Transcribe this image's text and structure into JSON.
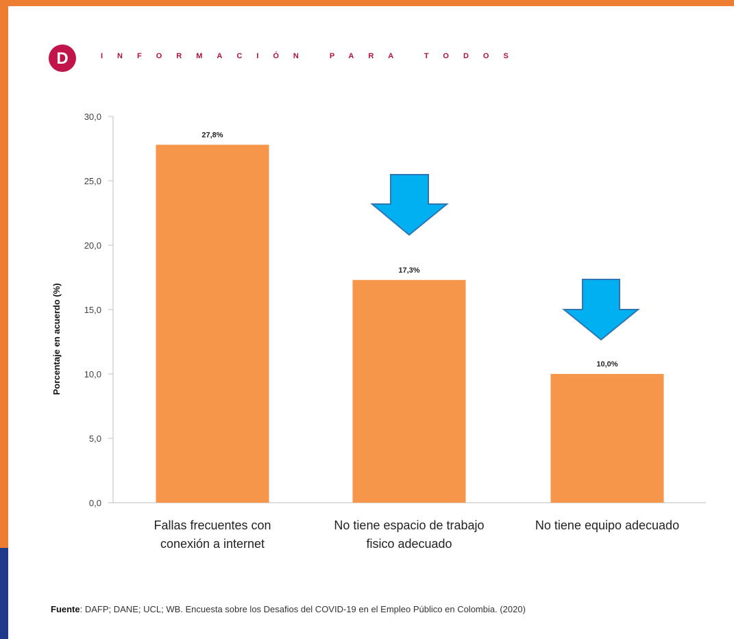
{
  "header": {
    "logo_letter": "D",
    "tagline": "INFORMACIÓN PARA TODOS"
  },
  "colors": {
    "frame": "#ED7D31",
    "bar": "#F5964A",
    "arrow": "#00B0F0",
    "arrow_stroke": "#2E75B6",
    "logo": "#C0144A",
    "edge": "#1F3A8A"
  },
  "chart_data": {
    "type": "bar",
    "categories": [
      [
        "Fallas frecuentes con",
        "conexión a internet"
      ],
      [
        "No tiene espacio de trabajo",
        "fisico adecuado"
      ],
      [
        "No tiene equipo adecuado"
      ]
    ],
    "values": [
      27.8,
      17.3,
      10.0
    ],
    "data_labels": [
      "27,8%",
      "17,3%",
      "10,0%"
    ],
    "yticks": [
      "0,0",
      "5,0",
      "10,0",
      "15,0",
      "20,0",
      "25,0",
      "30,0"
    ],
    "ylim": [
      0,
      30
    ],
    "ylabel": "Porcentaje en acuerdo (%)",
    "xlabel": "",
    "grid": false,
    "annotations": [
      "down-arrow above bar 2",
      "down-arrow above bar 3"
    ]
  },
  "source": {
    "prefix": "Fuente",
    "text": ": DAFP; DANE; UCL; WB. Encuesta sobre los Desafios del COVID-19 en el Empleo Público en Colombia. (2020)"
  }
}
